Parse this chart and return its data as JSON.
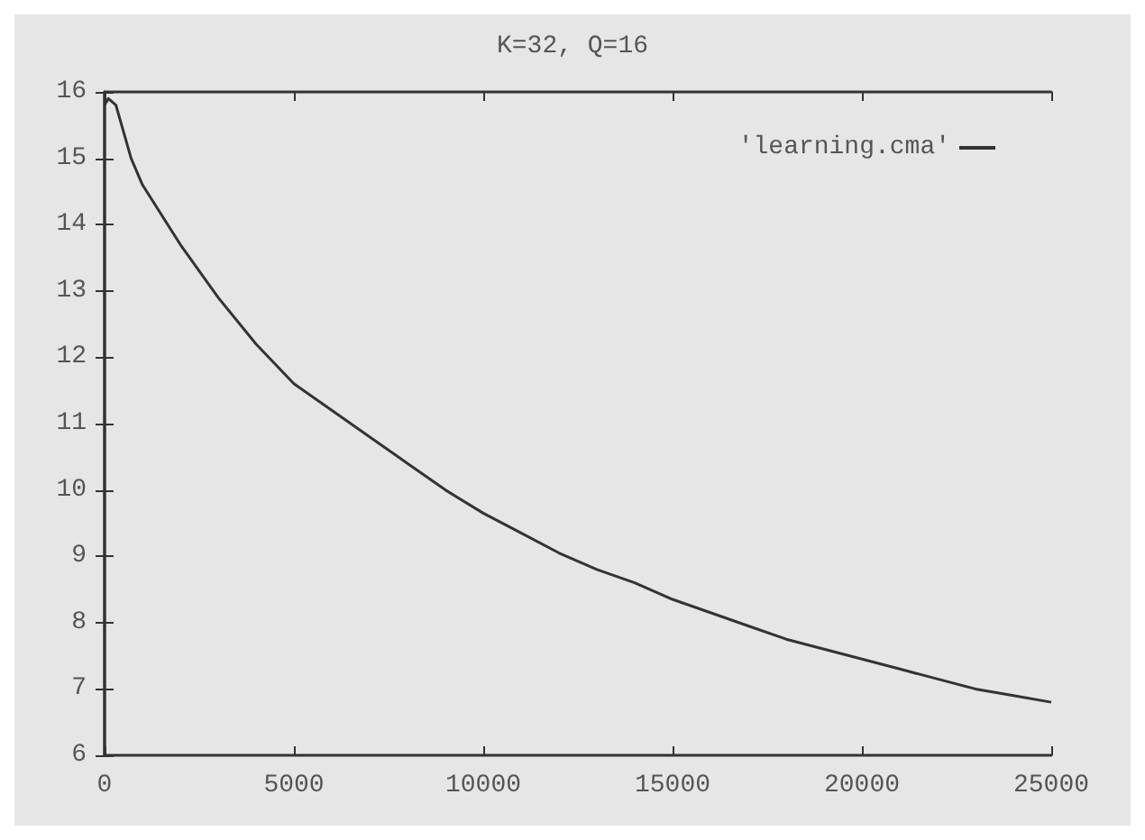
{
  "chart_data": {
    "type": "line",
    "title": "K=32, Q=16",
    "x": [
      0,
      100,
      300,
      500,
      700,
      1000,
      2000,
      3000,
      4000,
      5000,
      6000,
      7000,
      8000,
      9000,
      10000,
      11000,
      12000,
      13000,
      14000,
      15000,
      16000,
      17000,
      18000,
      19000,
      20000,
      21000,
      22000,
      23000,
      24000,
      25000
    ],
    "series": [
      {
        "name": "'learning.cma'",
        "color": "#333333",
        "values": [
          15.8,
          15.9,
          15.8,
          15.4,
          15.0,
          14.6,
          13.7,
          12.9,
          12.2,
          11.6,
          11.2,
          10.8,
          10.4,
          10.0,
          9.65,
          9.35,
          9.05,
          8.8,
          8.6,
          8.35,
          8.15,
          7.95,
          7.75,
          7.6,
          7.45,
          7.3,
          7.15,
          7.0,
          6.9,
          6.8
        ]
      }
    ],
    "xlim": [
      0,
      25000
    ],
    "xticks": [
      0,
      5000,
      10000,
      15000,
      20000,
      25000
    ],
    "ylim": [
      6,
      16
    ],
    "yticks": [
      6,
      7,
      8,
      9,
      10,
      11,
      12,
      13,
      14,
      15,
      16
    ],
    "grid": false,
    "legend": "top right",
    "marker": "none",
    "line_style": "solid"
  }
}
